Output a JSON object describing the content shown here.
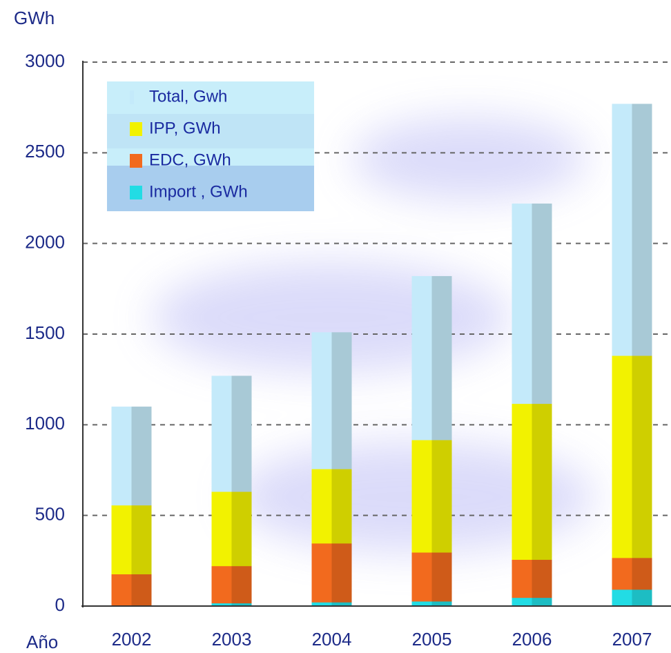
{
  "chart_data": {
    "type": "bar",
    "overlap": true,
    "ylabel": "GWh",
    "xlabel": "Año",
    "categories": [
      "2002",
      "2003",
      "2004",
      "2005",
      "2006",
      "2007"
    ],
    "series": [
      {
        "name": "Total, Gwh",
        "color": "#c4eafa",
        "values": [
          1100,
          1270,
          1510,
          1820,
          2220,
          2770
        ]
      },
      {
        "name": "IPP, GWh",
        "color": "#f2f200",
        "values": [
          555,
          630,
          755,
          915,
          1115,
          1380
        ]
      },
      {
        "name": "EDC, GWh",
        "color": "#f26a1e",
        "values": [
          175,
          220,
          345,
          295,
          255,
          265
        ]
      },
      {
        "name": "Import , GWh",
        "color": "#22dce4",
        "values": [
          0,
          15,
          20,
          25,
          45,
          90
        ]
      }
    ],
    "ylim": [
      0,
      3000
    ],
    "yticks": [
      0,
      500,
      1000,
      1500,
      2000,
      2500,
      3000
    ],
    "grid": true
  }
}
